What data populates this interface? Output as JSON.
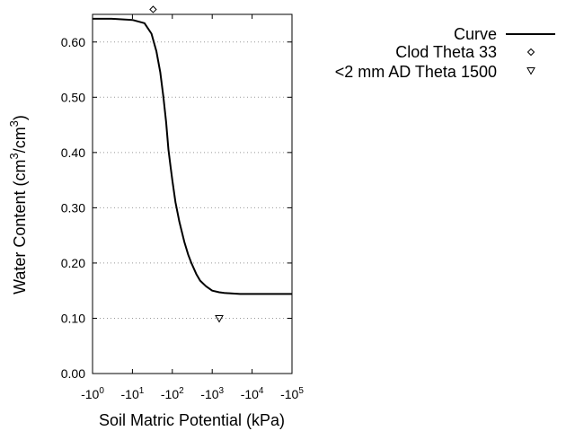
{
  "chart_data": {
    "type": "line",
    "xlabel": "Soil Matric Potential (kPa)",
    "ylabel_main": "Water Content (cm",
    "ylabel_sup1": "3",
    "ylabel_mid": "/cm",
    "ylabel_sup2": "3",
    "ylabel_end": ")",
    "x_scale": "log (negative pressure, decreasing to the right)",
    "xlim": [
      -1,
      -100000
    ],
    "ylim": [
      0,
      0.65
    ],
    "grid": "horizontal dotted",
    "legend_position": "top-right, outside plot",
    "x_ticks": [
      {
        "base": "-10",
        "exp": "0"
      },
      {
        "base": "-10",
        "exp": "1"
      },
      {
        "base": "-10",
        "exp": "2"
      },
      {
        "base": "-10",
        "exp": "3"
      },
      {
        "base": "-10",
        "exp": "4"
      },
      {
        "base": "-10",
        "exp": "5"
      }
    ],
    "y_ticks": [
      "0.00",
      "0.10",
      "0.20",
      "0.30",
      "0.40",
      "0.50",
      "0.60"
    ],
    "y_tick_values": [
      0,
      0.1,
      0.2,
      0.3,
      0.4,
      0.5,
      0.6
    ],
    "series": [
      {
        "name": "Curve",
        "style": "solid line",
        "x": [
          -1,
          -3,
          -10,
          -20,
          -30,
          -40,
          -50,
          -60,
          -70,
          -80,
          -90,
          -100,
          -120,
          -150,
          -200,
          -250,
          -300,
          -400,
          -500,
          -700,
          -1000,
          -1500,
          -2000,
          -3000,
          -5000,
          -10000,
          -100000
        ],
        "y": [
          0.642,
          0.642,
          0.64,
          0.634,
          0.615,
          0.583,
          0.545,
          0.5,
          0.455,
          0.405,
          0.375,
          0.35,
          0.31,
          0.275,
          0.238,
          0.215,
          0.2,
          0.18,
          0.168,
          0.158,
          0.15,
          0.147,
          0.146,
          0.145,
          0.144,
          0.144,
          0.144
        ]
      },
      {
        "name": "Clod Theta 33",
        "style": "diamond marker",
        "x": [
          -33
        ],
        "y": [
          0.659
        ]
      },
      {
        "name": "<2 mm AD Theta 1500",
        "style": "down-triangle marker",
        "x": [
          -1500
        ],
        "y": [
          0.1
        ]
      }
    ]
  }
}
